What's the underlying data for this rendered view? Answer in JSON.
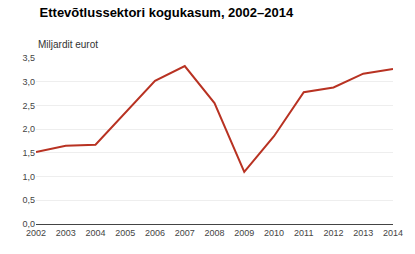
{
  "chart_data": {
    "type": "line",
    "title": "Ettevõtlussektori kogukasum, 2002–2014",
    "ylabel": "Miljardit eurot",
    "x": [
      2002,
      2003,
      2004,
      2005,
      2006,
      2007,
      2008,
      2009,
      2010,
      2011,
      2012,
      2013,
      2014
    ],
    "values": [
      1.52,
      1.65,
      1.67,
      2.35,
      3.02,
      3.33,
      2.55,
      1.1,
      1.85,
      2.78,
      2.88,
      3.17,
      3.27
    ],
    "color": "#b83222",
    "xlim": [
      2002,
      2014
    ],
    "xticks": [
      2002,
      2003,
      2004,
      2005,
      2006,
      2007,
      2008,
      2009,
      2010,
      2011,
      2012,
      2013,
      2014
    ],
    "ylim": [
      0.0,
      3.5
    ],
    "yticks": [
      {
        "value": 0.0,
        "label": "0,0"
      },
      {
        "value": 0.5,
        "label": "0,5"
      },
      {
        "value": 1.0,
        "label": "1,0"
      },
      {
        "value": 1.5,
        "label": "1,5"
      },
      {
        "value": 2.0,
        "label": "2,0"
      },
      {
        "value": 2.5,
        "label": "2,5"
      },
      {
        "value": 3.0,
        "label": "3,0"
      },
      {
        "value": 3.5,
        "label": "3,5"
      }
    ],
    "grid": "y"
  }
}
